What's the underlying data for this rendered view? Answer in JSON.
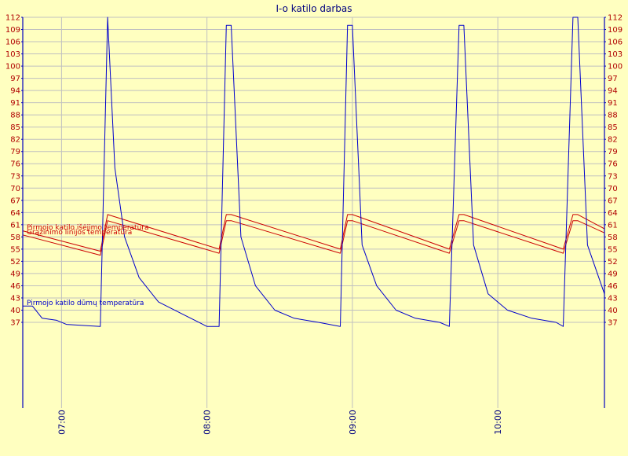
{
  "chart_data": {
    "type": "line",
    "title": "I-o katilo darbas",
    "ylim": [
      37,
      112
    ],
    "y_ticks": [
      37,
      40,
      43,
      46,
      49,
      52,
      55,
      58,
      61,
      64,
      67,
      70,
      73,
      76,
      79,
      82,
      85,
      88,
      91,
      94,
      97,
      100,
      103,
      106,
      109,
      112
    ],
    "x_range_minutes": [
      "06:44",
      "10:44"
    ],
    "x_ticks": [
      "07:00",
      "08:00",
      "09:00",
      "10:00"
    ],
    "grid": true,
    "colors": {
      "background": "#ffffc0",
      "grid": "#c0c0c0",
      "axis": "#0000c0",
      "ticks": "#b00000",
      "x_ticks": "#000080"
    },
    "series": [
      {
        "name": "Pirmojo katilo išėjimo temperatūra",
        "color": "#cc0000",
        "x": [
          "06:44",
          "07:16",
          "07:19",
          "08:05",
          "08:08",
          "08:10",
          "08:55",
          "08:58",
          "09:00",
          "09:40",
          "09:44",
          "09:46",
          "10:27",
          "10:31",
          "10:33",
          "10:44"
        ],
        "values": [
          59.5,
          54.5,
          63.5,
          55,
          63.5,
          63.5,
          55,
          63.5,
          63.5,
          55,
          63.5,
          63.5,
          55,
          63.5,
          63.5,
          60
        ]
      },
      {
        "name": "Grąžinimo linijos temperatūra",
        "color": "#cc0000",
        "x": [
          "06:44",
          "07:16",
          "07:19",
          "08:05",
          "08:08",
          "08:10",
          "08:55",
          "08:58",
          "09:00",
          "09:40",
          "09:44",
          "09:46",
          "10:27",
          "10:31",
          "10:33",
          "10:44"
        ],
        "values": [
          58.5,
          53.5,
          62,
          54,
          62,
          62,
          54,
          62,
          62,
          54,
          62,
          62,
          54,
          62,
          62,
          59
        ]
      },
      {
        "name": "Pirmojo katilo dūmų temperatūra",
        "color": "#0000cc",
        "x": [
          "06:44",
          "06:48",
          "06:52",
          "06:58",
          "07:02",
          "07:16",
          "07:19",
          "07:22",
          "07:26",
          "07:32",
          "07:40",
          "07:50",
          "08:00",
          "08:05",
          "08:08",
          "08:10",
          "08:14",
          "08:20",
          "08:28",
          "08:36",
          "08:46",
          "08:55",
          "08:58",
          "09:00",
          "09:04",
          "09:10",
          "09:18",
          "09:26",
          "09:36",
          "09:40",
          "09:44",
          "09:46",
          "09:50",
          "09:56",
          "10:04",
          "10:14",
          "10:24",
          "10:27",
          "10:31",
          "10:33",
          "10:37",
          "10:44"
        ],
        "values": [
          41,
          41,
          38,
          37.5,
          36.5,
          36,
          112,
          75,
          58,
          48,
          42,
          39,
          36,
          36,
          110,
          110,
          58,
          46,
          40,
          38,
          37,
          36,
          110,
          110,
          56,
          46,
          40,
          38,
          37,
          36,
          110,
          110,
          56,
          44,
          40,
          38,
          37,
          36,
          112,
          112,
          56,
          44
        ]
      }
    ]
  }
}
